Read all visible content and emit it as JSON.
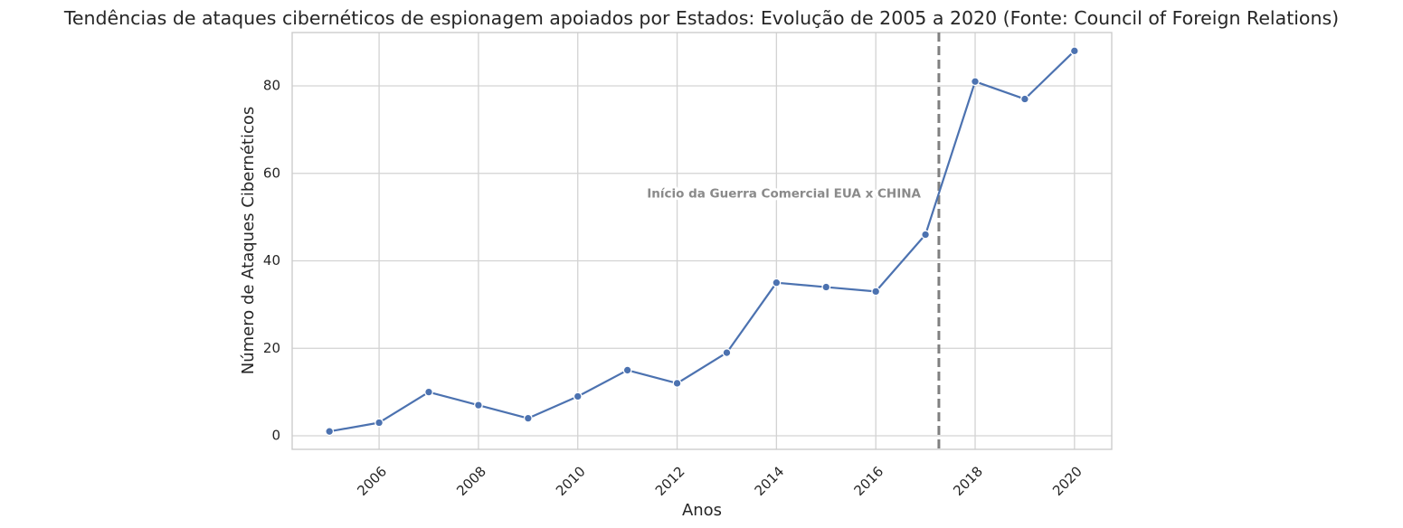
{
  "chart_data": {
    "type": "line",
    "title": "Tendências de ataques cibernéticos de espionagem apoiados por Estados: Evolução de 2005 a 2020 (Fonte: Council of Foreign Relations)",
    "xlabel": "Anos",
    "ylabel": "Número de Ataques Cibernéticos",
    "x": [
      2005,
      2006,
      2007,
      2008,
      2009,
      2010,
      2011,
      2012,
      2013,
      2014,
      2015,
      2016,
      2017,
      2018,
      2019,
      2020
    ],
    "series": [
      {
        "values": [
          1,
          3,
          10,
          7,
          4,
          9,
          15,
          12,
          19,
          35,
          34,
          33,
          46,
          81,
          77,
          88
        ],
        "color": "#4c72b0",
        "marker": "circle"
      }
    ],
    "xlim": [
      2004.25,
      2020.75
    ],
    "ylim": [
      -3.1,
      92.2
    ],
    "xticks": [
      "2006",
      "2008",
      "2010",
      "2012",
      "2014",
      "2016",
      "2018",
      "2020"
    ],
    "yticks": [
      "0",
      "20",
      "40",
      "60",
      "80"
    ],
    "grid": true,
    "legend": "none",
    "annotations": [
      {
        "type": "vline",
        "x": 2017.27,
        "style": "dashed",
        "color": "#808080"
      },
      {
        "type": "text",
        "text": "Início da Guerra Comercial EUA x CHINA",
        "x": 2014.15,
        "y": 54.5,
        "color": "#8a8a8a"
      }
    ]
  }
}
